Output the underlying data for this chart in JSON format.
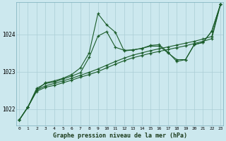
{
  "title": "Graphe pression niveau de la mer (hPa)",
  "background_color": "#cce8ee",
  "grid_color": "#aacdd5",
  "line_color": "#1a5c2a",
  "x_ticks": [
    0,
    1,
    2,
    3,
    4,
    5,
    6,
    7,
    8,
    9,
    10,
    11,
    12,
    13,
    14,
    15,
    16,
    17,
    18,
    19,
    20,
    21,
    22,
    23
  ],
  "y_ticks": [
    1022,
    1023,
    1024
  ],
  "ylim": [
    1021.55,
    1024.85
  ],
  "xlim": [
    -0.3,
    23.3
  ],
  "line1": [
    1021.7,
    1022.05,
    1022.5,
    1022.7,
    1022.75,
    1022.82,
    1022.92,
    1023.1,
    1023.5,
    1024.55,
    1024.25,
    1024.05,
    1023.55,
    1023.58,
    1023.62,
    1023.68,
    1023.68,
    1023.5,
    1023.32,
    1023.32,
    1023.72,
    1023.78,
    1024.08,
    1024.8
  ],
  "line2": [
    1021.7,
    1022.05,
    1022.5,
    1022.62,
    1022.68,
    1022.75,
    1022.82,
    1022.9,
    1022.98,
    1023.07,
    1023.17,
    1023.27,
    1023.36,
    1023.44,
    1023.5,
    1023.56,
    1023.61,
    1023.66,
    1023.71,
    1023.76,
    1023.81,
    1023.87,
    1023.94,
    1024.8
  ],
  "line3": [
    1021.7,
    1022.05,
    1022.47,
    1022.58,
    1022.63,
    1022.7,
    1022.77,
    1022.85,
    1022.92,
    1023.0,
    1023.1,
    1023.2,
    1023.29,
    1023.37,
    1023.43,
    1023.49,
    1023.54,
    1023.59,
    1023.64,
    1023.69,
    1023.75,
    1023.81,
    1023.88,
    1024.8
  ],
  "line4": [
    1021.7,
    1022.05,
    1022.55,
    1022.68,
    1022.72,
    1022.8,
    1022.88,
    1022.97,
    1023.38,
    1023.95,
    1024.07,
    1023.65,
    1023.57,
    1023.58,
    1023.62,
    1023.7,
    1023.72,
    1023.52,
    1023.27,
    1023.32,
    1023.72,
    1023.78,
    1024.08,
    1024.8
  ]
}
